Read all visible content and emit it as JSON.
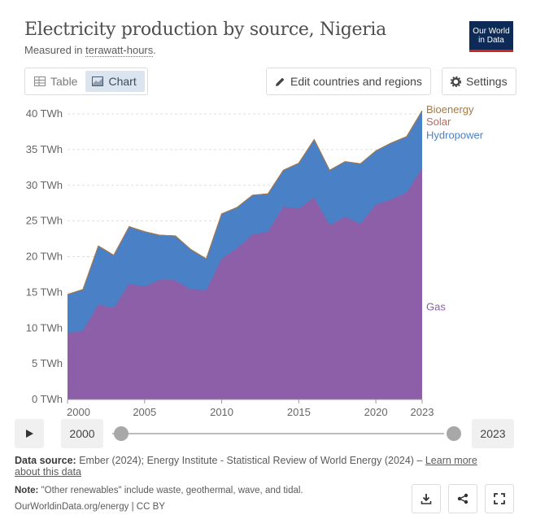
{
  "header": {
    "title": "Electricity production by source, Nigeria",
    "subtitle_prefix": "Measured in ",
    "subtitle_link": "terawatt-hours",
    "subtitle_suffix": ".",
    "logo_line1": "Our World",
    "logo_line2": "in Data"
  },
  "toolbar": {
    "table_label": "Table",
    "chart_label": "Chart",
    "edit_label": "Edit countries and regions",
    "settings_label": "Settings"
  },
  "timeline": {
    "start_year": "2000",
    "end_year": "2023"
  },
  "footer": {
    "source_label": "Data source:",
    "source_text": " Ember (2024); Energy Institute - Statistical Review of World Energy (2024) – ",
    "learn_more": "Learn more about this data",
    "note_label": "Note:",
    "note_text": " \"Other renewables\" include waste, geothermal, wave, and tidal.",
    "credit": "OurWorldinData.org/energy | CC BY"
  },
  "icons": {
    "table": "table-icon",
    "chart": "area-chart-icon",
    "edit": "pencil-icon",
    "settings": "gear-icon",
    "play": "play-icon",
    "download": "download-icon",
    "share": "share-icon",
    "fullscreen": "fullscreen-icon"
  },
  "colors": {
    "gas": "#8d5fa8",
    "hydropower": "#4a80c6",
    "bioenergy": "#a17a4a",
    "solar": "#b86a5c"
  },
  "chart_data": {
    "type": "area",
    "stacked": true,
    "unit": "TWh",
    "x": [
      2000,
      2001,
      2002,
      2003,
      2004,
      2005,
      2006,
      2007,
      2008,
      2009,
      2010,
      2011,
      2012,
      2013,
      2014,
      2015,
      2016,
      2017,
      2018,
      2019,
      2020,
      2021,
      2022,
      2023
    ],
    "series": [
      {
        "name": "Gas",
        "color": "#8d5fa8",
        "values": [
          9.3,
          9.6,
          13.3,
          12.8,
          16.2,
          15.8,
          16.8,
          16.7,
          15.4,
          15.3,
          19.7,
          21.2,
          23.1,
          23.5,
          27.0,
          26.7,
          28.3,
          24.4,
          25.6,
          24.6,
          27.3,
          28.0,
          29.0,
          32.4
        ]
      },
      {
        "name": "Hydropower",
        "color": "#4a80c6",
        "values": [
          5.4,
          5.8,
          8.2,
          7.4,
          8.0,
          7.7,
          6.2,
          6.2,
          5.6,
          4.4,
          6.3,
          5.7,
          5.5,
          5.3,
          5.1,
          6.4,
          8.1,
          7.7,
          7.7,
          8.4,
          7.5,
          7.9,
          7.8,
          8.0
        ]
      },
      {
        "name": "Solar",
        "color": "#b86a5c",
        "values": [
          0,
          0,
          0,
          0,
          0,
          0,
          0,
          0,
          0,
          0,
          0,
          0,
          0,
          0,
          0,
          0,
          0,
          0,
          0.02,
          0.02,
          0.03,
          0.03,
          0.03,
          0.04
        ]
      },
      {
        "name": "Bioenergy",
        "color": "#a17a4a",
        "values": [
          0,
          0,
          0,
          0,
          0,
          0,
          0,
          0,
          0,
          0,
          0,
          0,
          0,
          0,
          0,
          0,
          0,
          0,
          0,
          0,
          0,
          0,
          0,
          0.02
        ]
      }
    ],
    "y_ticks": [
      "0 TWh",
      "5 TWh",
      "10 TWh",
      "15 TWh",
      "20 TWh",
      "25 TWh",
      "30 TWh",
      "35 TWh",
      "40 TWh"
    ],
    "x_ticks": [
      "2000",
      "2005",
      "2010",
      "2015",
      "2020",
      "2023"
    ],
    "legend_labels": [
      "Bioenergy",
      "Solar",
      "Hydropower",
      "Gas"
    ],
    "ylim": [
      0,
      40
    ],
    "xlim": [
      2000,
      2023
    ],
    "grid": true,
    "legend": "right"
  }
}
